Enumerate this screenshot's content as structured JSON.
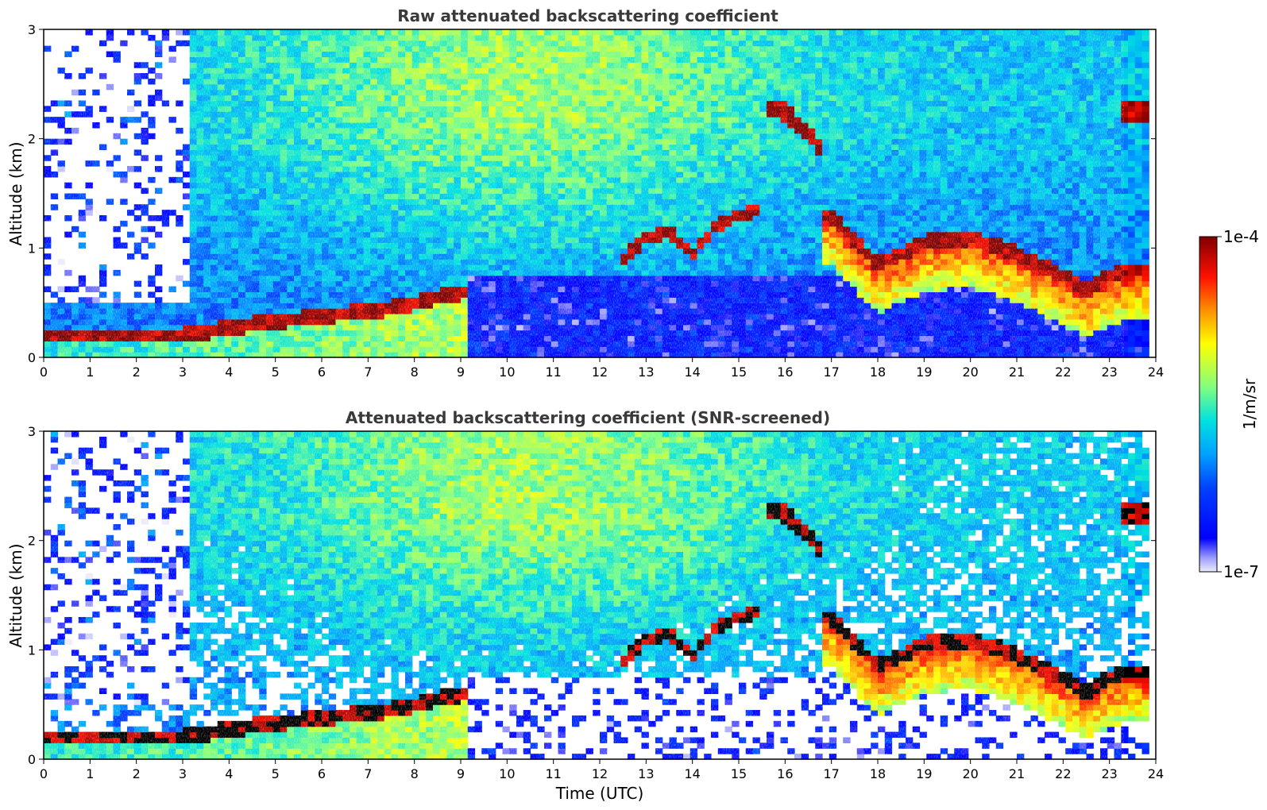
{
  "chart_data": [
    {
      "type": "heatmap",
      "title": "Raw attenuated backscattering coefficient",
      "xlabel": "",
      "ylabel": "Altitude (km)",
      "xlim": [
        0,
        24
      ],
      "ylim": [
        0,
        3
      ],
      "xticks": [
        "0",
        "1",
        "2",
        "3",
        "4",
        "5",
        "6",
        "7",
        "8",
        "9",
        "10",
        "11",
        "12",
        "13",
        "14",
        "15",
        "16",
        "17",
        "18",
        "19",
        "20",
        "21",
        "22",
        "23",
        "24"
      ],
      "yticks": [
        "0",
        "1",
        "2",
        "3"
      ],
      "features": [
        {
          "name": "boundary layer",
          "x": [
            0,
            1,
            2,
            3,
            4,
            5,
            6,
            7,
            8,
            9
          ],
          "y": [
            0.2,
            0.2,
            0.2,
            0.2,
            0.28,
            0.33,
            0.38,
            0.42,
            0.5,
            0.6
          ]
        },
        {
          "name": "cloud layer",
          "x": [
            12.5,
            13,
            13.5,
            14,
            14.5,
            15,
            15.5
          ],
          "y": [
            0.9,
            1.1,
            1.15,
            0.95,
            1.2,
            1.3,
            1.35
          ]
        },
        {
          "name": "elevated layer",
          "x": [
            15.6,
            16,
            16.5,
            16.8
          ],
          "y": [
            2.3,
            2.25,
            2.05,
            1.9
          ]
        },
        {
          "name": "cloud base",
          "x": [
            17,
            18,
            19,
            20,
            21,
            22,
            22.5,
            23,
            23.5
          ],
          "y": [
            1.3,
            0.85,
            1.05,
            1.1,
            0.95,
            0.75,
            0.62,
            0.75,
            0.8
          ]
        }
      ]
    },
    {
      "type": "heatmap",
      "title": "Attenuated backscattering coefficient (SNR-screened)",
      "xlabel": "Time (UTC)",
      "ylabel": "Altitude (km)",
      "xlim": [
        0,
        24
      ],
      "ylim": [
        0,
        3
      ],
      "xticks": [
        "0",
        "1",
        "2",
        "3",
        "4",
        "5",
        "6",
        "7",
        "8",
        "9",
        "10",
        "11",
        "12",
        "13",
        "14",
        "15",
        "16",
        "17",
        "18",
        "19",
        "20",
        "21",
        "22",
        "23",
        "24"
      ],
      "yticks": [
        "0",
        "1",
        "2",
        "3"
      ]
    }
  ],
  "colorbar": {
    "label": "1/m/sr",
    "max_label": "1e-4",
    "min_label": "1e-7",
    "range": [
      1e-07,
      0.0001
    ],
    "scale": "log",
    "colormap": [
      "#e8e8f8",
      "#0000ff",
      "#0080ff",
      "#00e0e0",
      "#80ff80",
      "#ffff00",
      "#ff8000",
      "#ff0000",
      "#800000"
    ]
  }
}
